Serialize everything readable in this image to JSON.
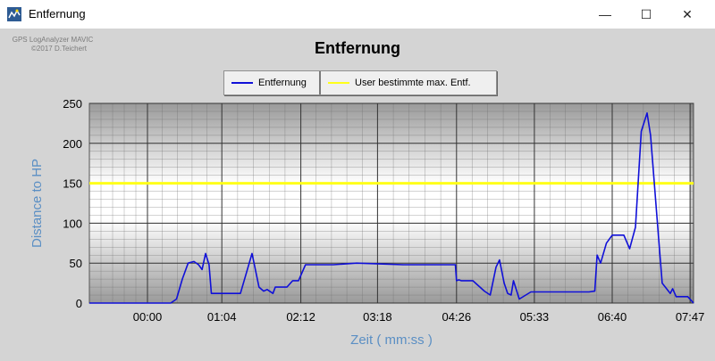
{
  "window": {
    "title": "Entfernung",
    "icon": "app-icon",
    "controls": {
      "minimize": "—",
      "maximize": "☐",
      "close": "✕"
    }
  },
  "credit": {
    "line1": "GPS LogAnalyzer MAVIC",
    "line2": "©2017 D.Teichert"
  },
  "chart_data": {
    "type": "line",
    "title": "Entfernung",
    "xlabel": "Zeit ( mm:ss )",
    "ylabel": "Distance to HP",
    "ylim": [
      0,
      250
    ],
    "yticks": [
      0,
      50,
      100,
      150,
      200,
      250
    ],
    "xlim": [
      -50,
      470
    ],
    "xticks": [
      {
        "seconds": 0,
        "label": "00:00"
      },
      {
        "seconds": 64,
        "label": "01:04"
      },
      {
        "seconds": 132,
        "label": "02:12"
      },
      {
        "seconds": 198,
        "label": "03:18"
      },
      {
        "seconds": 266,
        "label": "04:26"
      },
      {
        "seconds": 333,
        "label": "05:33"
      },
      {
        "seconds": 400,
        "label": "06:40"
      },
      {
        "seconds": 467,
        "label": "07:47"
      }
    ],
    "grid": true,
    "legend_position": "top-center",
    "series": [
      {
        "name": "Entfernung",
        "color": "#1010d8",
        "x": [
          -50,
          -30,
          -5,
          0,
          10,
          20,
          25,
          30,
          35,
          40,
          44,
          47,
          50,
          53,
          55,
          60,
          70,
          80,
          90,
          96,
          100,
          103,
          108,
          110,
          120,
          125,
          130,
          136,
          140,
          160,
          180,
          200,
          220,
          250,
          265,
          266,
          268,
          270,
          280,
          290,
          295,
          300,
          303,
          307,
          310,
          313,
          315,
          320,
          330,
          340,
          350,
          360,
          370,
          380,
          385,
          387,
          390,
          395,
          400,
          410,
          415,
          420,
          425,
          430,
          433,
          440,
          443,
          450,
          452,
          455,
          460,
          465,
          470
        ],
        "y": [
          0,
          0,
          0,
          0,
          0,
          0,
          5,
          30,
          50,
          52,
          48,
          42,
          62,
          48,
          12,
          12,
          12,
          12,
          62,
          20,
          15,
          17,
          12,
          20,
          20,
          28,
          28,
          48,
          48,
          48,
          50,
          49,
          48,
          48,
          48,
          28,
          29,
          28,
          28,
          15,
          10,
          45,
          54,
          25,
          12,
          10,
          28,
          5,
          14,
          14,
          14,
          14,
          14,
          14,
          15,
          60,
          50,
          75,
          85,
          85,
          68,
          95,
          215,
          238,
          210,
          80,
          25,
          12,
          18,
          8,
          8,
          8,
          0
        ]
      },
      {
        "name": "User bestimmte max. Entf.",
        "color": "#ffff19",
        "x": [
          -50,
          470
        ],
        "y": [
          150,
          150
        ]
      }
    ]
  }
}
